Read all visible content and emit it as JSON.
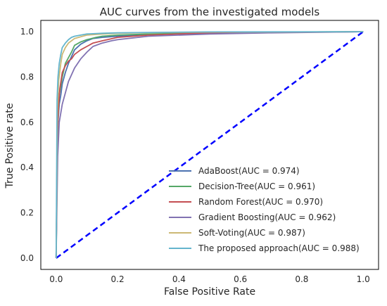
{
  "chart_data": {
    "type": "line",
    "title": "AUC curves from the investigated models",
    "xlabel": "False Positive Rate",
    "ylabel": "True Positive rate",
    "xlim": [
      -0.05,
      1.05
    ],
    "ylim": [
      -0.05,
      1.05
    ],
    "x_ticks": [
      "0.0",
      "0.2",
      "0.4",
      "0.6",
      "0.8",
      "1.0"
    ],
    "y_ticks": [
      "0.0",
      "0.2",
      "0.4",
      "0.6",
      "0.8",
      "1.0"
    ],
    "grid": false,
    "legend_position": "lower-right",
    "diagonal": {
      "x": [
        0,
        1
      ],
      "y": [
        0,
        1
      ],
      "color": "#0000ff",
      "style": "dashed"
    },
    "series": [
      {
        "name": "AdaBoost(AUC = 0.974)",
        "color": "#4c72b0",
        "x": [
          0,
          0.003,
          0.006,
          0.01,
          0.015,
          0.02,
          0.03,
          0.04,
          0.05,
          0.06,
          0.08,
          0.1,
          0.12,
          0.15,
          0.2,
          0.3,
          0.5,
          0.7,
          1.0
        ],
        "y": [
          0,
          0.45,
          0.6,
          0.68,
          0.72,
          0.77,
          0.82,
          0.86,
          0.89,
          0.92,
          0.945,
          0.96,
          0.97,
          0.975,
          0.98,
          0.988,
          0.995,
          0.998,
          1.0
        ]
      },
      {
        "name": "Decision-Tree(AUC = 0.961)",
        "color": "#55a868",
        "x": [
          0,
          0.005,
          0.01,
          0.02,
          0.03,
          0.05,
          0.06,
          0.08,
          0.1,
          0.13,
          0.15,
          0.2,
          0.3,
          0.5,
          0.7,
          1.0
        ],
        "y": [
          0,
          0.6,
          0.72,
          0.8,
          0.86,
          0.91,
          0.94,
          0.955,
          0.965,
          0.975,
          0.98,
          0.985,
          0.99,
          0.995,
          0.998,
          1.0
        ]
      },
      {
        "name": "Random Forest(AUC = 0.970)",
        "color": "#c44e52",
        "x": [
          0,
          0.004,
          0.008,
          0.012,
          0.02,
          0.03,
          0.04,
          0.05,
          0.06,
          0.08,
          0.1,
          0.12,
          0.15,
          0.2,
          0.3,
          0.5,
          1.0
        ],
        "y": [
          0,
          0.55,
          0.68,
          0.75,
          0.82,
          0.85,
          0.87,
          0.88,
          0.9,
          0.92,
          0.935,
          0.95,
          0.96,
          0.975,
          0.985,
          0.995,
          1.0
        ]
      },
      {
        "name": "Gradient Boosting(AUC = 0.962)",
        "color": "#8172b2",
        "x": [
          0,
          0.005,
          0.01,
          0.02,
          0.03,
          0.04,
          0.06,
          0.08,
          0.1,
          0.12,
          0.15,
          0.18,
          0.2,
          0.3,
          0.5,
          0.7,
          1.0
        ],
        "y": [
          0,
          0.45,
          0.6,
          0.68,
          0.73,
          0.78,
          0.84,
          0.88,
          0.91,
          0.935,
          0.95,
          0.96,
          0.965,
          0.98,
          0.99,
          0.995,
          1.0
        ]
      },
      {
        "name": "Soft-Voting(AUC = 0.987)",
        "color": "#ccb974",
        "x": [
          0,
          0.004,
          0.008,
          0.015,
          0.02,
          0.03,
          0.04,
          0.05,
          0.06,
          0.08,
          0.1,
          0.15,
          0.2,
          0.3,
          0.5,
          1.0
        ],
        "y": [
          0,
          0.65,
          0.78,
          0.86,
          0.9,
          0.93,
          0.95,
          0.96,
          0.97,
          0.978,
          0.985,
          0.99,
          0.993,
          0.996,
          0.998,
          1.0
        ]
      },
      {
        "name": "The proposed approach(AUC = 0.988)",
        "color": "#64b5cd",
        "x": [
          0,
          0.003,
          0.006,
          0.01,
          0.015,
          0.02,
          0.03,
          0.04,
          0.05,
          0.06,
          0.08,
          0.1,
          0.15,
          0.2,
          0.3,
          0.5,
          1.0
        ],
        "y": [
          0,
          0.7,
          0.8,
          0.86,
          0.9,
          0.93,
          0.95,
          0.965,
          0.975,
          0.98,
          0.985,
          0.99,
          0.993,
          0.995,
          0.997,
          0.999,
          1.0
        ]
      }
    ]
  }
}
